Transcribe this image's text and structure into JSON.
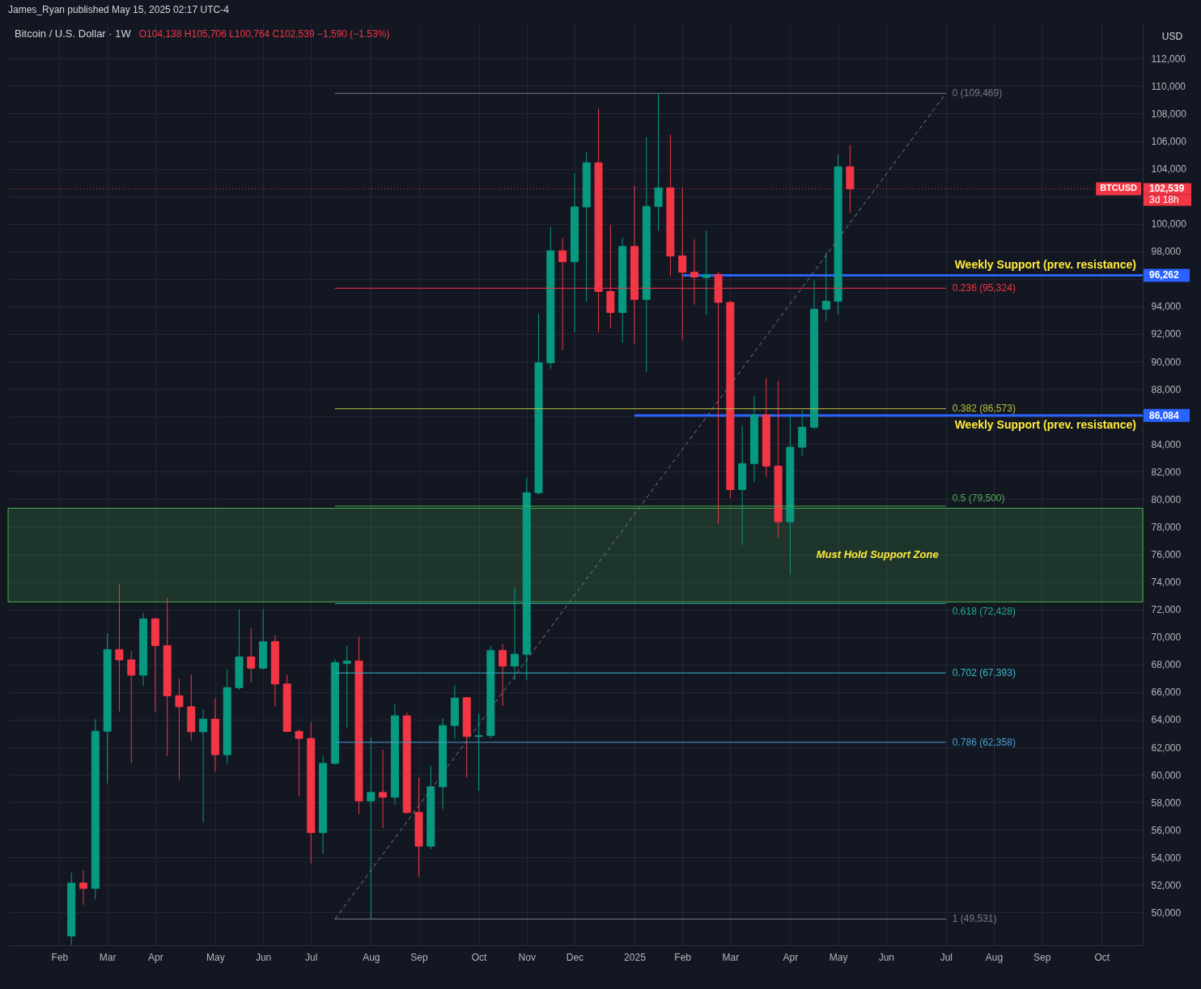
{
  "chart_data": {
    "type": "candlestick",
    "title": "Bitcoin / U.S. Dollar · 1W",
    "subtitle": "O104,138 H105,706 L100,764 C102,539 −1,590 (−1.53%)",
    "ylabel": "USD",
    "x": [
      "2024-02-12",
      "2024-02-19",
      "2024-02-26",
      "2024-03-04",
      "2024-03-11",
      "2024-03-18",
      "2024-03-25",
      "2024-04-01",
      "2024-04-08",
      "2024-04-15",
      "2024-04-22",
      "2024-04-29",
      "2024-05-06",
      "2024-05-13",
      "2024-05-20",
      "2024-05-27",
      "2024-06-03",
      "2024-06-10",
      "2024-06-17",
      "2024-06-24",
      "2024-07-01",
      "2024-07-08",
      "2024-07-15",
      "2024-07-22",
      "2024-07-29",
      "2024-08-05",
      "2024-08-12",
      "2024-08-19",
      "2024-08-26",
      "2024-09-02",
      "2024-09-09",
      "2024-09-16",
      "2024-09-23",
      "2024-09-30",
      "2024-10-07",
      "2024-10-14",
      "2024-10-21",
      "2024-10-28",
      "2024-11-04",
      "2024-11-11",
      "2024-11-18",
      "2024-11-25",
      "2024-12-02",
      "2024-12-09",
      "2024-12-16",
      "2024-12-23",
      "2024-12-30",
      "2025-01-06",
      "2025-01-13",
      "2025-01-20",
      "2025-01-27",
      "2025-02-03",
      "2025-02-10",
      "2025-02-17",
      "2025-02-24",
      "2025-03-03",
      "2025-03-10",
      "2025-03-17",
      "2025-03-24",
      "2025-03-31",
      "2025-04-07",
      "2025-04-14",
      "2025-04-21",
      "2025-04-28",
      "2025-05-05",
      "2025-05-12"
    ],
    "ohlc": [
      [
        48300,
        52900,
        47650,
        52140
      ],
      [
        52140,
        53080,
        50570,
        51750
      ],
      [
        51750,
        64040,
        50960,
        63160
      ],
      [
        63160,
        70260,
        59370,
        69090
      ],
      [
        69090,
        73840,
        64590,
        68340
      ],
      [
        68340,
        68970,
        60840,
        67230
      ],
      [
        67230,
        71770,
        66470,
        71320
      ],
      [
        71320,
        71400,
        64590,
        69380
      ],
      [
        69380,
        72840,
        61360,
        65740
      ],
      [
        65740,
        66980,
        59660,
        64940
      ],
      [
        64940,
        67270,
        62480,
        63120
      ],
      [
        63120,
        64750,
        56560,
        64040
      ],
      [
        64040,
        65570,
        60230,
        61460
      ],
      [
        61460,
        67680,
        60820,
        66330
      ],
      [
        66330,
        72020,
        66160,
        68560
      ],
      [
        68560,
        70670,
        66700,
        67740
      ],
      [
        67740,
        72020,
        67620,
        69670
      ],
      [
        69670,
        70140,
        64950,
        66590
      ],
      [
        66590,
        67270,
        63100,
        63150
      ],
      [
        63150,
        63310,
        58430,
        62640
      ],
      [
        62640,
        63820,
        53570,
        55800
      ],
      [
        55800,
        61420,
        54270,
        60830
      ],
      [
        60830,
        68380,
        60730,
        68150
      ],
      [
        68090,
        69380,
        63420,
        68260
      ],
      [
        68260,
        70020,
        57140,
        58100
      ],
      [
        58100,
        62700,
        49531,
        58720
      ],
      [
        58720,
        61820,
        56150,
        58370
      ],
      [
        58370,
        65100,
        57840,
        64280
      ],
      [
        64280,
        64520,
        57180,
        57260
      ],
      [
        57260,
        59800,
        52600,
        54820
      ],
      [
        54820,
        60650,
        54590,
        59130
      ],
      [
        59130,
        64110,
        57510,
        63580
      ],
      [
        63580,
        66510,
        62610,
        65570
      ],
      [
        65600,
        65630,
        59830,
        62780
      ],
      [
        62780,
        64440,
        58840,
        62840
      ],
      [
        62840,
        69360,
        62650,
        69030
      ],
      [
        69030,
        69500,
        65000,
        67890
      ],
      [
        67890,
        73590,
        66850,
        68750
      ],
      [
        68750,
        81530,
        66870,
        80480
      ],
      [
        80480,
        93480,
        80340,
        89910
      ],
      [
        89910,
        99790,
        89470,
        98040
      ],
      [
        98040,
        98960,
        90820,
        97240
      ],
      [
        97240,
        103660,
        92120,
        101220
      ],
      [
        101220,
        105180,
        94340,
        104430
      ],
      [
        104430,
        108360,
        92120,
        95080
      ],
      [
        95080,
        99920,
        92430,
        93560
      ],
      [
        93560,
        98960,
        91350,
        98350
      ],
      [
        98350,
        102770,
        91300,
        94510
      ],
      [
        94510,
        106300,
        89260,
        101260
      ],
      [
        101260,
        109400,
        99500,
        102610
      ],
      [
        102610,
        106480,
        96230,
        97660
      ],
      [
        97660,
        102610,
        91560,
        96480
      ],
      [
        96480,
        98870,
        94130,
        96140
      ],
      [
        96100,
        99500,
        93390,
        96320
      ],
      [
        96320,
        96500,
        78250,
        94290
      ],
      [
        94290,
        94400,
        80090,
        80710
      ],
      [
        80710,
        85340,
        76690,
        82590
      ],
      [
        82590,
        87510,
        81250,
        86130
      ],
      [
        86130,
        88810,
        81650,
        82410
      ],
      [
        82410,
        88590,
        77230,
        78370
      ],
      [
        78370,
        86060,
        74540,
        83780
      ],
      [
        83780,
        86460,
        83150,
        85230
      ],
      [
        85230,
        95900,
        85100,
        93800
      ],
      [
        93800,
        97910,
        92950,
        94380
      ],
      [
        94380,
        105020,
        93460,
        104138
      ],
      [
        104138,
        105706,
        100764,
        102539
      ]
    ],
    "colors": [
      "#089981",
      "#f23645",
      "#089981",
      "#089981",
      "#f23645",
      "#f23645",
      "#089981",
      "#f23645",
      "#f23645",
      "#f23645",
      "#f23645",
      "#089981",
      "#f23645",
      "#089981",
      "#089981",
      "#f23645",
      "#089981",
      "#f23645",
      "#f23645",
      "#f23645",
      "#f23645",
      "#089981",
      "#089981",
      "#089981",
      "#f23645",
      "#089981",
      "#f23645",
      "#089981",
      "#f23645",
      "#f23645",
      "#089981",
      "#089981",
      "#089981",
      "#f23645",
      "#089981",
      "#089981",
      "#f23645",
      "#089981",
      "#089981",
      "#089981",
      "#089981",
      "#f23645",
      "#089981",
      "#089981",
      "#f23645",
      "#f23645",
      "#089981",
      "#f23645",
      "#089981",
      "#089981",
      "#f23645",
      "#f23645",
      "#f23645",
      "#089981",
      "#f23645",
      "#f23645",
      "#089981",
      "#089981",
      "#f23645",
      "#f23645",
      "#089981",
      "#089981",
      "#089981",
      "#089981",
      "#089981",
      "#f23645"
    ],
    "series": [
      {
        "type": "line",
        "x": [
          "2024-07-15",
          "2025-07-07"
        ],
        "values": [
          49531,
          109469
        ],
        "color": "#787b86",
        "line_style": "dashed"
      },
      {
        "type": "line",
        "name": "0 (109,469)",
        "x": [
          "2024-07-15",
          "2025-07-07"
        ],
        "values": [
          109469,
          109469
        ],
        "color": "#787b86"
      },
      {
        "type": "line",
        "name": "0.236 (95,324)",
        "x": [
          "2024-07-15",
          "2025-07-07"
        ],
        "values": [
          95324,
          95324
        ],
        "color": "#f23645"
      },
      {
        "type": "line",
        "name": "0.382 (86,573)",
        "x": [
          "2024-07-15",
          "2025-07-07"
        ],
        "values": [
          86573,
          86573
        ],
        "color": "#b7c03c"
      },
      {
        "type": "line",
        "name": "0.5 (79,500)",
        "x": [
          "2024-07-15",
          "2025-07-07"
        ],
        "values": [
          79500,
          79500
        ],
        "color": "#4caf50"
      },
      {
        "type": "line",
        "name": "0.618 (72,428)",
        "x": [
          "2024-07-15",
          "2025-07-07"
        ],
        "values": [
          72428,
          72428
        ],
        "color": "#22ab94"
      },
      {
        "type": "line",
        "name": "0.702 (67,393)",
        "x": [
          "2024-07-15",
          "2025-07-07"
        ],
        "values": [
          67393,
          67393
        ],
        "color": "#3bb8cc"
      },
      {
        "type": "line",
        "name": "0.786 (62,358)",
        "x": [
          "2024-07-15",
          "2025-07-07"
        ],
        "values": [
          62358,
          62358
        ],
        "color": "#4a9fd4"
      },
      {
        "type": "line",
        "name": "1 (49,531)",
        "x": [
          "2024-07-15",
          "2025-07-07"
        ],
        "values": [
          49531,
          49531
        ],
        "color": "#787b86"
      },
      {
        "type": "line",
        "name": "Weekly Support (prev. resistance)",
        "x": [
          "2025-02-03",
          "2025-10-30"
        ],
        "values": [
          96262,
          96262
        ],
        "color": "#2962ff",
        "value_labels": [
          null,
          "96,262"
        ]
      },
      {
        "type": "line",
        "name": "Weekly Support (prev. resistance)",
        "x": [
          "2025-01-06",
          "2025-10-30"
        ],
        "values": [
          86084,
          86084
        ],
        "color": "#2962ff",
        "value_labels": [
          null,
          "86,084"
        ]
      }
    ],
    "xlim": [
      "2024-01-06",
      "2025-10-30"
    ],
    "ylim": [
      47620,
      114600
    ],
    "xticks": [
      {
        "value": "2024-02-05",
        "label": "Feb"
      },
      {
        "value": "2024-03-04",
        "label": "Mar"
      },
      {
        "value": "2024-04-01",
        "label": "Apr"
      },
      {
        "value": "2024-05-06",
        "label": "May"
      },
      {
        "value": "2024-06-03",
        "label": "Jun"
      },
      {
        "value": "2024-07-01",
        "label": "Jul"
      },
      {
        "value": "2024-08-05",
        "label": "Aug"
      },
      {
        "value": "2024-09-02",
        "label": "Sep"
      },
      {
        "value": "2024-10-07",
        "label": "Oct"
      },
      {
        "value": "2024-11-04",
        "label": "Nov"
      },
      {
        "value": "2024-12-02",
        "label": "Dec"
      },
      {
        "value": "2025-01-06",
        "label": "2025"
      },
      {
        "value": "2025-02-03",
        "label": "Feb"
      },
      {
        "value": "2025-03-03",
        "label": "Mar"
      },
      {
        "value": "2025-04-07",
        "label": "Apr"
      },
      {
        "value": "2025-05-05",
        "label": "May"
      },
      {
        "value": "2025-06-02",
        "label": "Jun"
      },
      {
        "value": "2025-07-07",
        "label": "Jul"
      },
      {
        "value": "2025-08-04",
        "label": "Aug"
      },
      {
        "value": "2025-09-01",
        "label": "Sep"
      },
      {
        "value": "2025-10-06",
        "label": "Oct"
      }
    ],
    "yticks": [
      {
        "value": 50000,
        "label": "50,000"
      },
      {
        "value": 52000,
        "label": "52,000"
      },
      {
        "value": 54000,
        "label": "54,000"
      },
      {
        "value": 56000,
        "label": "56,000"
      },
      {
        "value": 58000,
        "label": "58,000"
      },
      {
        "value": 60000,
        "label": "60,000"
      },
      {
        "value": 62000,
        "label": "62,000"
      },
      {
        "value": 64000,
        "label": "64,000"
      },
      {
        "value": 66000,
        "label": "66,000"
      },
      {
        "value": 68000,
        "label": "68,000"
      },
      {
        "value": 70000,
        "label": "70,000"
      },
      {
        "value": 72000,
        "label": "72,000"
      },
      {
        "value": 74000,
        "label": "74,000"
      },
      {
        "value": 76000,
        "label": "76,000"
      },
      {
        "value": 78000,
        "label": "78,000"
      },
      {
        "value": 80000,
        "label": "80,000"
      },
      {
        "value": 82000,
        "label": "82,000"
      },
      {
        "value": 84000,
        "label": "84,000"
      },
      {
        "value": 86000,
        "label": null
      },
      {
        "value": 88000,
        "label": "88,000"
      },
      {
        "value": 90000,
        "label": "90,000"
      },
      {
        "value": 92000,
        "label": "92,000"
      },
      {
        "value": 94000,
        "label": "94,000"
      },
      {
        "value": 96000,
        "label": null
      },
      {
        "value": 98000,
        "label": "98,000"
      },
      {
        "value": 100000,
        "label": "100,000"
      },
      {
        "value": 102000,
        "label": null
      },
      {
        "value": 104000,
        "label": "104,000"
      },
      {
        "value": 106000,
        "label": "106,000"
      },
      {
        "value": 108000,
        "label": "108,000"
      },
      {
        "value": 110000,
        "label": "110,000"
      },
      {
        "value": 112000,
        "label": "112,000"
      }
    ],
    "ref_lines": [
      {
        "axis": "y",
        "value": 102539,
        "label": "BTCUSD",
        "color": "#f23645",
        "line_style": "dotted"
      }
    ],
    "bands": [
      {
        "axis": "y",
        "from": 72550,
        "to": 79350,
        "label": "Must Hold Support Zone",
        "color": "#4caf50"
      }
    ],
    "annotations": [
      "James_Ryan published May 15, 2025 02:17 UTC-4",
      {
        "text": "102,539",
        "x": "2025-10-30",
        "y": 102539
      },
      {
        "text": "3d 18h",
        "x": "2025-10-30",
        "y": 102539
      }
    ],
    "grid": true
  }
}
